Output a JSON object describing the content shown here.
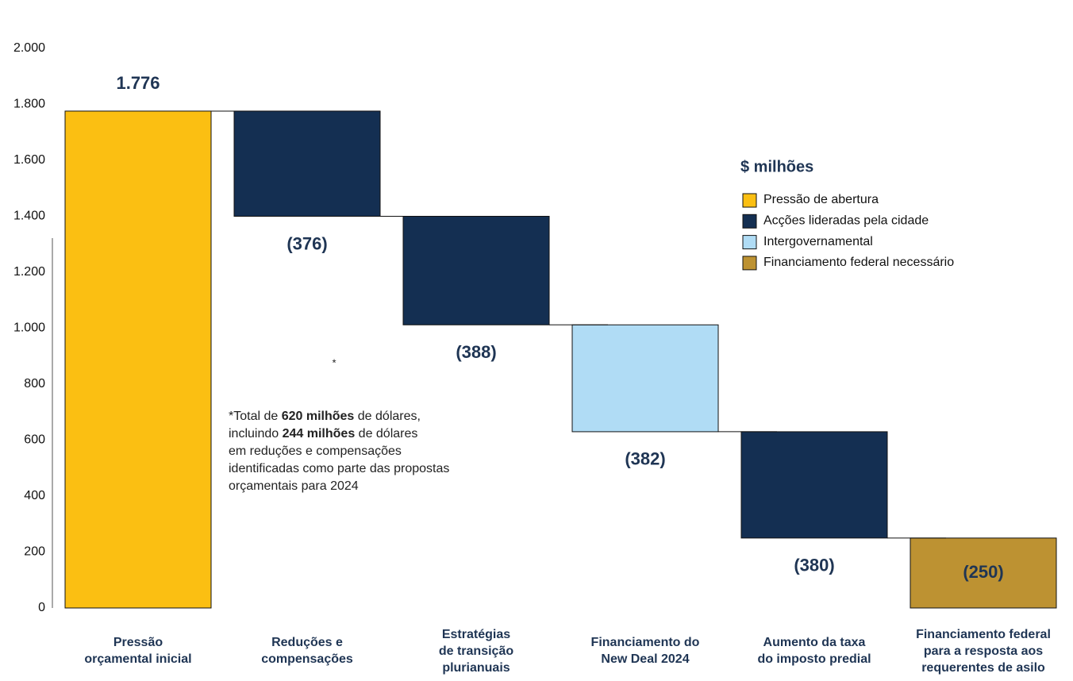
{
  "chart_data": {
    "type": "waterfall",
    "categories": [
      [
        "Pressão",
        "orçamental inicial"
      ],
      [
        "Reduções e",
        "compensações"
      ],
      [
        "Estratégias",
        "de transição",
        "plurianuais"
      ],
      [
        "Financiamento do",
        "New Deal 2024"
      ],
      [
        "Aumento da taxa",
        "do imposto predial"
      ],
      [
        "Financiamento federal",
        "para a resposta aos",
        "requerentes de asilo"
      ]
    ],
    "values": [
      1776,
      -376,
      -388,
      -382,
      -380,
      -250
    ],
    "value_labels": [
      "1.776",
      "(376)",
      "(388)",
      "(382)",
      "(380)",
      "(250)"
    ],
    "colors": [
      "#fbbf12",
      "#142f52",
      "#142f52",
      "#b0dcf5",
      "#142f52",
      "#bd9232"
    ],
    "ylim": [
      0,
      2000
    ],
    "yticks": [
      0,
      200,
      400,
      600,
      800,
      {
        "value": 1000,
        "label": "1.000"
      },
      {
        "value": 1200,
        "label": "1.200"
      },
      {
        "value": 1400,
        "label": "1.400"
      },
      {
        "value": 1600,
        "label": "1.600"
      },
      {
        "value": 1800,
        "label": "1.800"
      },
      {
        "value": 2000,
        "label": "2.000"
      }
    ],
    "legend": {
      "title": "$ milhões",
      "items": [
        {
          "name": "Pressão de abertura",
          "color": "#fbbf12"
        },
        {
          "name": "Acções lideradas pela cidade",
          "color": "#142f52"
        },
        {
          "name": "Intergovernamental",
          "color": "#b0dcf5"
        },
        {
          "name": "Financiamento federal necessário",
          "color": "#bd9232"
        }
      ]
    },
    "annotation": {
      "marker": "*",
      "lines": [
        [
          {
            "text": "*Total de "
          },
          {
            "text": "620 milhões",
            "bold": true
          },
          {
            "text": " de dólares,"
          }
        ],
        [
          {
            "text": "incluindo "
          },
          {
            "text": "244 milhões",
            "bold": true
          },
          {
            "text": " de dólares"
          }
        ],
        [
          {
            "text": "em reduções e compensações"
          }
        ],
        [
          {
            "text": "identificadas como parte das propostas"
          }
        ],
        [
          {
            "text": "orçamentais para 2024"
          }
        ]
      ]
    }
  }
}
